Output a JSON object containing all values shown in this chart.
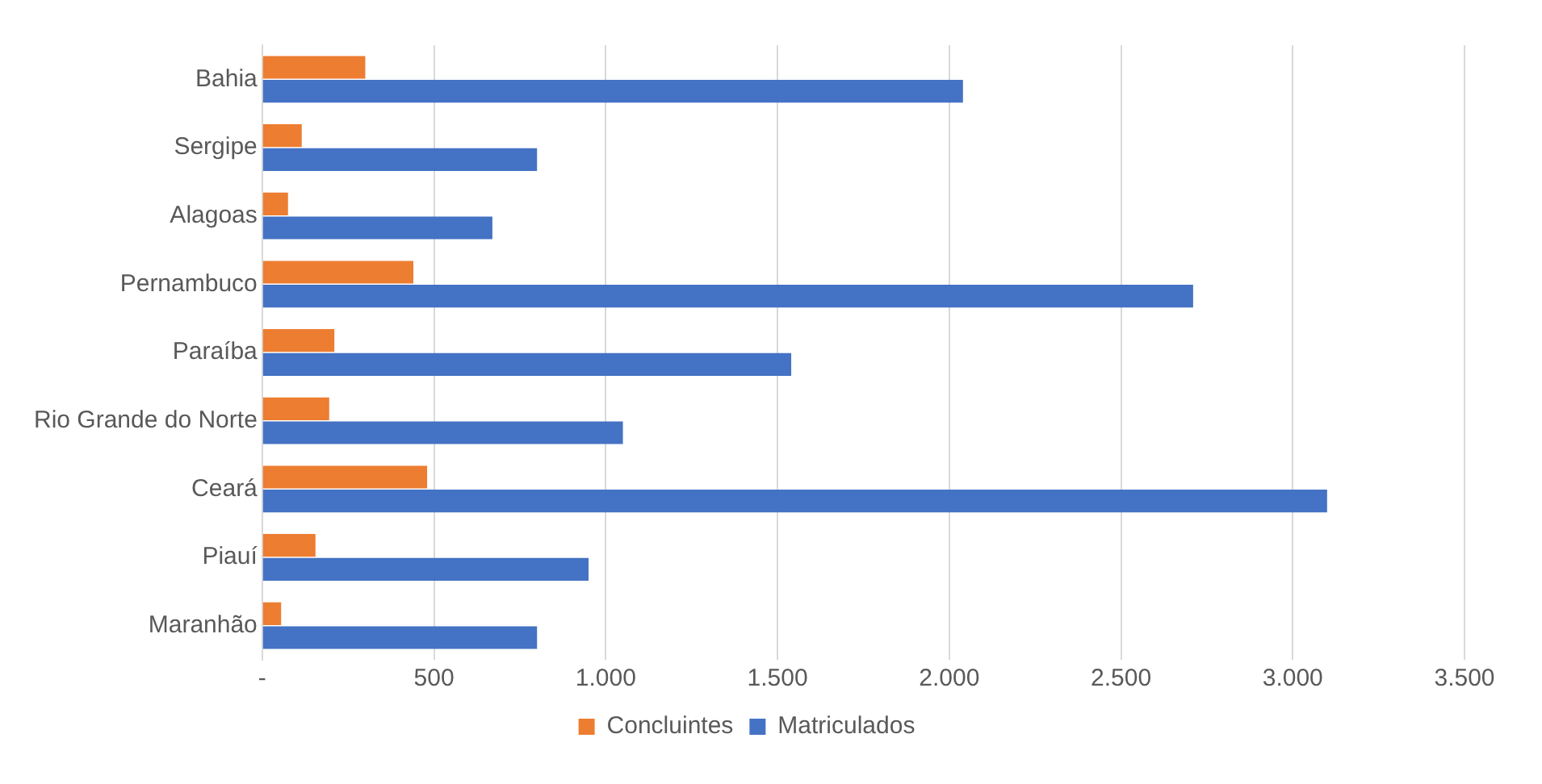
{
  "chart_data": {
    "type": "bar",
    "orientation": "horizontal",
    "categories": [
      "Bahia",
      "Sergipe",
      "Alagoas",
      "Pernambuco",
      "Paraíba",
      "Rio Grande do Norte",
      "Ceará",
      "Piauí",
      "Maranhão"
    ],
    "series": [
      {
        "name": "Concluintes",
        "color": "#ed7d31",
        "values": [
          300,
          115,
          75,
          440,
          210,
          195,
          480,
          155,
          55
        ]
      },
      {
        "name": "Matriculados",
        "color": "#4472c4",
        "values": [
          2040,
          800,
          670,
          2710,
          1540,
          1050,
          3100,
          950,
          800
        ]
      }
    ],
    "xlim": [
      0,
      3500
    ],
    "xticks": [
      {
        "value": 0,
        "label": "-"
      },
      {
        "value": 500,
        "label": "500"
      },
      {
        "value": 1000,
        "label": "1.000"
      },
      {
        "value": 1500,
        "label": "1.500"
      },
      {
        "value": 2000,
        "label": "2.000"
      },
      {
        "value": 2500,
        "label": "2.500"
      },
      {
        "value": 3000,
        "label": "3.000"
      },
      {
        "value": 3500,
        "label": "3.500"
      }
    ],
    "grid": "x",
    "legend": "bottom"
  }
}
